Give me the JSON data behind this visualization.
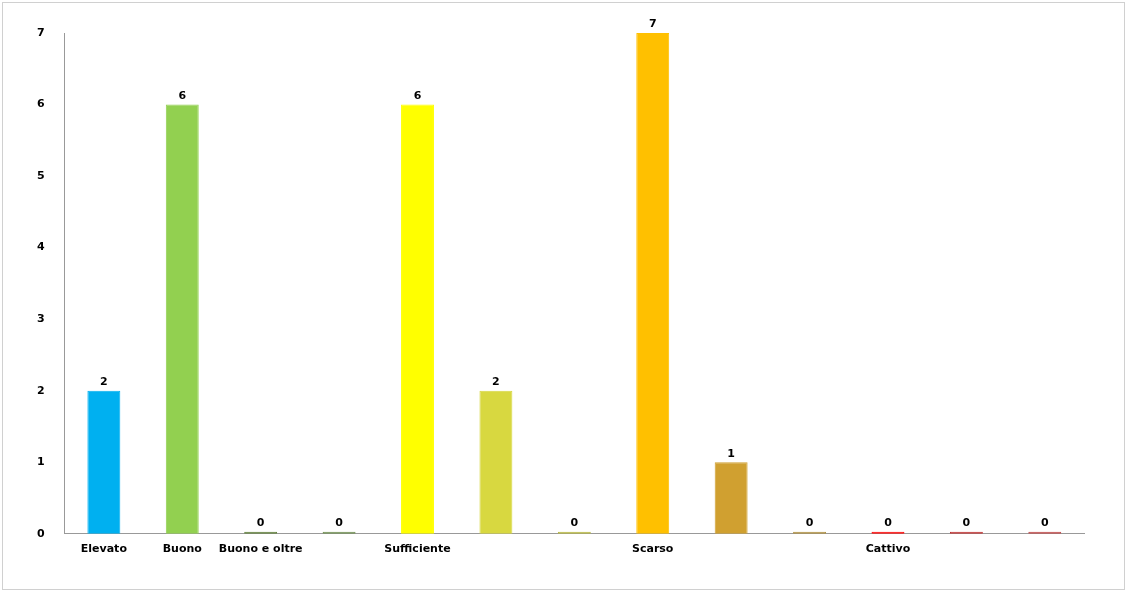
{
  "chart_data": {
    "type": "bar",
    "categories": [
      "Elevato",
      "Buono",
      "Buono e oltre",
      null,
      "Sufficiente",
      null,
      null,
      "Scarso",
      null,
      null,
      "Cattivo",
      null,
      null
    ],
    "values": [
      2,
      6,
      0,
      0,
      6,
      2,
      0,
      7,
      1,
      0,
      0,
      0,
      0
    ],
    "colors": [
      "#00b0f0",
      "#92d050",
      "#5f7f3a",
      "#6f8f50",
      "#ffff00",
      "#d8d840",
      "#b8b840",
      "#ffc000",
      "#d0a030",
      "#b09040",
      "#ff0000",
      "#c03030",
      "#c04848"
    ],
    "ylim": [
      0,
      7
    ],
    "yticks": [
      0,
      1,
      2,
      3,
      4,
      5,
      6,
      7
    ],
    "grid": false,
    "legend": false,
    "data_labels": true
  }
}
